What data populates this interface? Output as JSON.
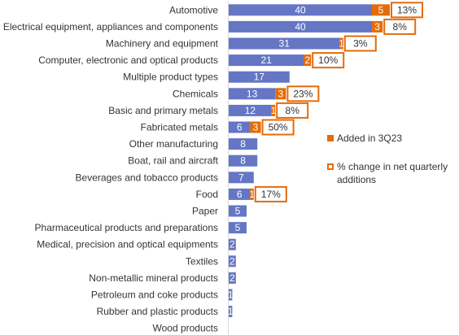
{
  "chart_data": {
    "type": "bar",
    "orientation": "horizontal",
    "stacked": true,
    "categories": [
      "Automotive",
      "Electrical equipment, appliances and components",
      "Machinery and equipment",
      "Computer, electronic and optical products",
      "Multiple product types",
      "Chemicals",
      "Basic and primary metals",
      "Fabricated metals",
      "Other manufacturing",
      "Boat, rail and aircraft",
      "Beverages and tobacco products",
      "Food",
      "Paper",
      "Pharmaceutical products and preparations",
      "Medical, precision and optical equipments",
      "Textiles",
      "Non-metallic mineral products",
      "Petroleum and coke products",
      "Rubber and plastic products",
      "Wood products"
    ],
    "series": [
      {
        "values": [
          40,
          40,
          31,
          21,
          17,
          13,
          12,
          6,
          8,
          8,
          7,
          6,
          5,
          5,
          2,
          2,
          2,
          1,
          1,
          0
        ],
        "color": "#6476c4"
      },
      {
        "name": "Added in 3Q23",
        "values": [
          5,
          3,
          1,
          2,
          0,
          3,
          1,
          3,
          0,
          0,
          0,
          1,
          0,
          0,
          0,
          0,
          0,
          0,
          0,
          0
        ],
        "color": "#e46c0a"
      }
    ],
    "pct_change": {
      "name": "% change in net quarterly additions",
      "values": [
        "13%",
        "8%",
        "3%",
        "10%",
        null,
        "23%",
        "8%",
        "50%",
        null,
        null,
        null,
        "17%",
        null,
        null,
        null,
        null,
        null,
        null,
        null,
        null
      ],
      "border_color": "#e46c0a"
    },
    "legend_position": "right",
    "grid": false
  }
}
